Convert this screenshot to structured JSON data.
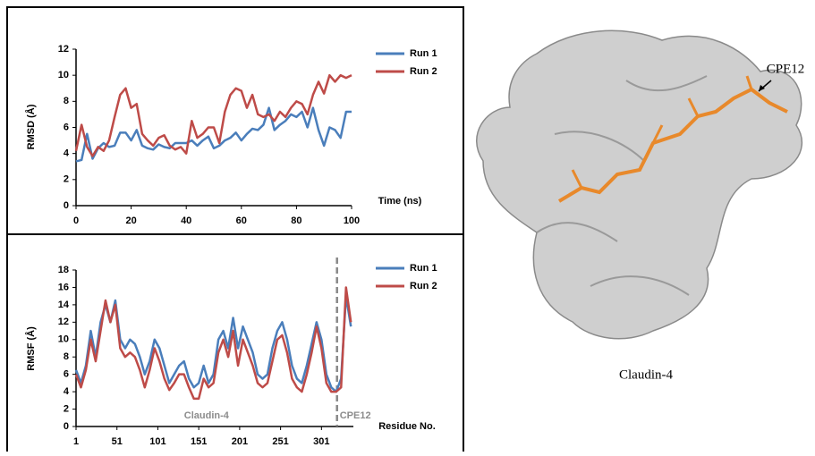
{
  "chart_data": [
    {
      "type": "line",
      "x_label": "Time (ns)",
      "y_label": "RMSD (Å)",
      "x": [
        0,
        2,
        4,
        6,
        8,
        10,
        12,
        14,
        16,
        18,
        20,
        22,
        24,
        26,
        28,
        30,
        32,
        34,
        36,
        38,
        40,
        42,
        44,
        46,
        48,
        50,
        52,
        54,
        56,
        58,
        60,
        62,
        64,
        66,
        68,
        70,
        72,
        74,
        76,
        78,
        80,
        82,
        84,
        86,
        88,
        90,
        92,
        94,
        96,
        98,
        100
      ],
      "series": [
        {
          "name": "Run 1",
          "color": "#4a7ebb",
          "values": [
            3.4,
            3.5,
            5.5,
            3.6,
            4.4,
            4.8,
            4.5,
            4.6,
            5.6,
            5.6,
            5.0,
            5.8,
            4.6,
            4.4,
            4.3,
            4.7,
            4.5,
            4.4,
            4.8,
            4.8,
            4.8,
            5.0,
            4.6,
            5.0,
            5.3,
            4.4,
            4.6,
            5.0,
            5.2,
            5.6,
            5.0,
            5.5,
            5.9,
            5.8,
            6.2,
            7.5,
            5.8,
            6.2,
            6.5,
            7.0,
            6.8,
            7.2,
            6.0,
            7.5,
            5.8,
            4.6,
            6.0,
            5.8,
            5.2,
            7.2,
            7.2
          ]
        },
        {
          "name": "Run 2",
          "color": "#be4b48",
          "values": [
            4.2,
            6.2,
            4.5,
            3.8,
            4.5,
            4.2,
            5.0,
            6.8,
            8.5,
            9.0,
            7.5,
            7.8,
            5.5,
            5.0,
            4.6,
            5.2,
            5.4,
            4.6,
            4.3,
            4.5,
            4.0,
            6.5,
            5.2,
            5.5,
            6.0,
            6.0,
            4.8,
            7.2,
            8.5,
            9.0,
            8.8,
            7.5,
            8.5,
            7.0,
            6.8,
            7.0,
            6.5,
            7.2,
            6.8,
            7.5,
            8.0,
            7.8,
            7.0,
            8.5,
            9.5,
            8.6,
            10.0,
            9.5,
            10.0,
            9.8,
            10.0
          ]
        }
      ],
      "xlim": [
        0,
        100
      ],
      "xticks": [
        0,
        20,
        40,
        60,
        80,
        100
      ],
      "ylim": [
        0,
        12
      ],
      "yticks": [
        0,
        2,
        4,
        6,
        8,
        10,
        12
      ]
    },
    {
      "type": "line",
      "x_label": "Residue No.",
      "y_label": "RMSF (Å)",
      "x": [
        1,
        7,
        13,
        19,
        25,
        31,
        37,
        43,
        49,
        55,
        61,
        67,
        73,
        79,
        85,
        91,
        97,
        103,
        109,
        115,
        121,
        127,
        133,
        139,
        145,
        151,
        157,
        163,
        169,
        175,
        181,
        187,
        193,
        199,
        205,
        211,
        217,
        223,
        229,
        235,
        241,
        247,
        253,
        259,
        265,
        271,
        277,
        283,
        289,
        295,
        301,
        307,
        313,
        319,
        325,
        331,
        337
      ],
      "series": [
        {
          "name": "Run 1",
          "color": "#4a7ebb",
          "values": [
            6.5,
            5,
            7,
            11,
            8,
            12,
            14,
            12,
            14.5,
            10,
            9,
            10,
            9.5,
            8,
            6,
            7.5,
            10,
            9,
            7,
            5,
            6,
            7,
            7.5,
            5.5,
            4.5,
            5,
            7,
            5,
            6,
            10,
            11,
            9,
            12.5,
            9,
            11.5,
            10,
            8.5,
            6,
            5.5,
            6,
            9,
            11,
            12,
            10,
            7,
            5.5,
            5,
            7,
            9.5,
            12,
            10,
            6,
            4.5,
            4,
            5.5,
            15,
            11.5
          ]
        },
        {
          "name": "Run 2",
          "color": "#be4b48",
          "values": [
            6,
            4.5,
            6.5,
            10,
            7.5,
            11,
            14.5,
            12,
            14,
            9,
            8,
            8.5,
            8,
            6.5,
            4.5,
            6.5,
            9,
            7.5,
            5.5,
            4.2,
            5,
            6,
            6,
            4.5,
            3.2,
            3.2,
            5.5,
            4.5,
            5,
            8.5,
            10,
            8,
            11,
            7,
            10,
            8.5,
            7,
            5,
            4.5,
            5,
            7.5,
            10,
            10.5,
            8.5,
            5.5,
            4.5,
            4,
            6,
            8.5,
            11.5,
            9,
            5,
            4,
            4,
            4.5,
            16,
            12
          ]
        }
      ],
      "xlim": [
        1,
        340
      ],
      "xticks": [
        1,
        51,
        101,
        151,
        201,
        251,
        301
      ],
      "ylim": [
        0,
        18
      ],
      "yticks": [
        0,
        2,
        4,
        6,
        8,
        10,
        12,
        14,
        16,
        18
      ],
      "divider_x": 320,
      "regions": [
        {
          "label": "Claudin-4"
        },
        {
          "label": "CPE12"
        }
      ]
    }
  ],
  "image": {
    "labels": [
      "CPE12",
      "Claudin-4"
    ]
  }
}
